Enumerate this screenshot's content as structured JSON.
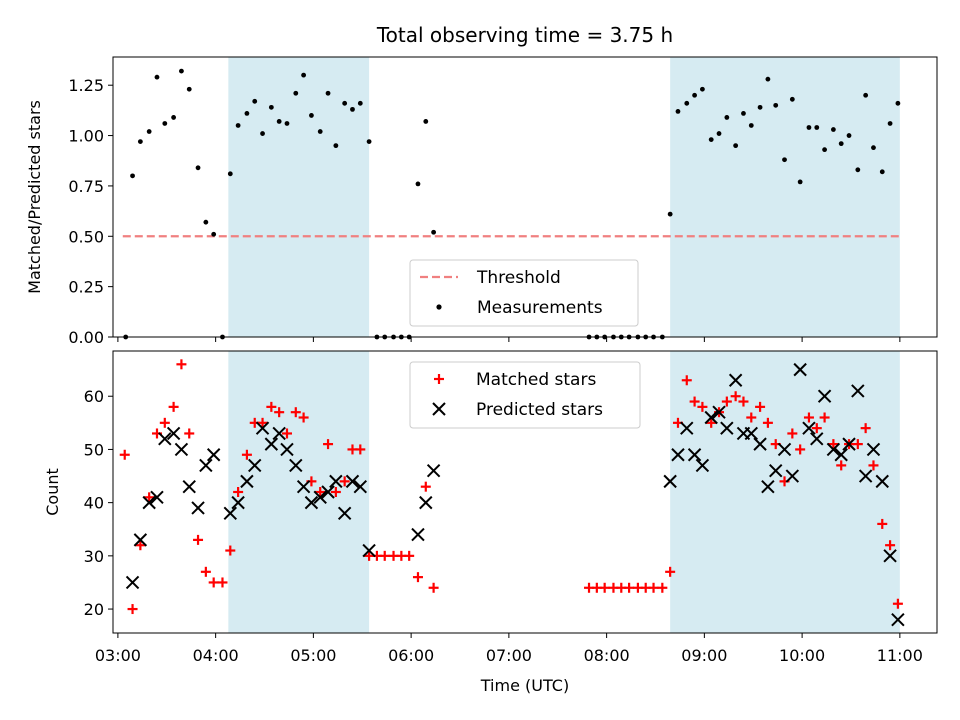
{
  "chart_data": [
    {
      "type": "scatter",
      "title": "Total observing time = 3.75 h",
      "xlabel": "",
      "ylabel": "Matched/Predicted stars",
      "x_unit": "time (UTC, decimal hours)",
      "xlim": [
        2.95,
        11.38
      ],
      "ylim": [
        0,
        1.39
      ],
      "yticks": [
        0,
        0.25,
        0.5,
        0.75,
        1.0,
        1.25
      ],
      "ytick_labels": [
        "0.00",
        "0.25",
        "0.50",
        "0.75",
        "1.00",
        "1.25"
      ],
      "shaded_intervals": [
        [
          4.13,
          5.57
        ],
        [
          8.65,
          11.0
        ]
      ],
      "shade_color": "#add8e6",
      "threshold": {
        "name": "Threshold",
        "y": 0.5,
        "x_range": [
          3.05,
          11.0
        ],
        "color": "#f08080"
      },
      "series": [
        {
          "name": "Measurements",
          "marker": "dot",
          "color": "#000000",
          "points": [
            [
              3.08,
              0.0
            ],
            [
              3.15,
              0.8
            ],
            [
              3.23,
              0.97
            ],
            [
              3.32,
              1.02
            ],
            [
              3.4,
              1.29
            ],
            [
              3.48,
              1.06
            ],
            [
              3.57,
              1.09
            ],
            [
              3.65,
              1.32
            ],
            [
              3.73,
              1.23
            ],
            [
              3.82,
              0.84
            ],
            [
              3.9,
              0.57
            ],
            [
              3.98,
              0.51
            ],
            [
              4.07,
              0.0
            ],
            [
              4.15,
              0.81
            ],
            [
              4.23,
              1.05
            ],
            [
              4.32,
              1.11
            ],
            [
              4.4,
              1.17
            ],
            [
              4.48,
              1.01
            ],
            [
              4.57,
              1.14
            ],
            [
              4.65,
              1.07
            ],
            [
              4.73,
              1.06
            ],
            [
              4.82,
              1.21
            ],
            [
              4.9,
              1.3
            ],
            [
              4.98,
              1.1
            ],
            [
              5.07,
              1.02
            ],
            [
              5.15,
              1.21
            ],
            [
              5.23,
              0.95
            ],
            [
              5.32,
              1.16
            ],
            [
              5.4,
              1.13
            ],
            [
              5.48,
              1.16
            ],
            [
              5.57,
              0.97
            ],
            [
              5.65,
              0.0
            ],
            [
              5.73,
              0.0
            ],
            [
              5.82,
              0.0
            ],
            [
              5.9,
              0.0
            ],
            [
              5.98,
              0.0
            ],
            [
              6.07,
              0.76
            ],
            [
              6.15,
              1.07
            ],
            [
              6.23,
              0.52
            ],
            [
              7.82,
              0.0
            ],
            [
              7.9,
              0.0
            ],
            [
              7.98,
              0.0
            ],
            [
              8.07,
              0.0
            ],
            [
              8.15,
              0.0
            ],
            [
              8.23,
              0.0
            ],
            [
              8.32,
              0.0
            ],
            [
              8.4,
              0.0
            ],
            [
              8.48,
              0.0
            ],
            [
              8.57,
              0.0
            ],
            [
              8.65,
              0.61
            ],
            [
              8.73,
              1.12
            ],
            [
              8.82,
              1.16
            ],
            [
              8.9,
              1.2
            ],
            [
              8.98,
              1.23
            ],
            [
              9.07,
              0.98
            ],
            [
              9.15,
              1.01
            ],
            [
              9.23,
              1.09
            ],
            [
              9.32,
              0.95
            ],
            [
              9.4,
              1.11
            ],
            [
              9.48,
              1.05
            ],
            [
              9.57,
              1.14
            ],
            [
              9.65,
              1.28
            ],
            [
              9.73,
              1.15
            ],
            [
              9.82,
              0.88
            ],
            [
              9.9,
              1.18
            ],
            [
              9.98,
              0.77
            ],
            [
              10.07,
              1.04
            ],
            [
              10.15,
              1.04
            ],
            [
              10.23,
              0.93
            ],
            [
              10.32,
              1.03
            ],
            [
              10.4,
              0.96
            ],
            [
              10.48,
              1.0
            ],
            [
              10.57,
              0.83
            ],
            [
              10.65,
              1.2
            ],
            [
              10.73,
              0.94
            ],
            [
              10.82,
              0.82
            ],
            [
              10.9,
              1.06
            ],
            [
              10.98,
              1.16
            ]
          ]
        }
      ],
      "legend": [
        "Threshold",
        "Measurements"
      ],
      "legend_location": "lower center",
      "grid": false
    },
    {
      "type": "scatter",
      "title": "",
      "xlabel": "Time (UTC)",
      "ylabel": "Count",
      "x_unit": "time (UTC, decimal hours)",
      "xlim": [
        2.95,
        11.38
      ],
      "ylim": [
        15.5,
        68.5
      ],
      "xticks": [
        3,
        4,
        5,
        6,
        7,
        8,
        9,
        10,
        11
      ],
      "xtick_labels": [
        "03:00",
        "04:00",
        "05:00",
        "06:00",
        "07:00",
        "08:00",
        "09:00",
        "10:00",
        "11:00"
      ],
      "yticks": [
        20,
        30,
        40,
        50,
        60
      ],
      "ytick_labels": [
        "20",
        "30",
        "40",
        "50",
        "60"
      ],
      "shaded_intervals": [
        [
          4.13,
          5.57
        ],
        [
          8.65,
          11.0
        ]
      ],
      "shade_color": "#add8e6",
      "series": [
        {
          "name": "Matched stars",
          "marker": "plus",
          "color": "#ff0000",
          "points": [
            [
              3.07,
              49
            ],
            [
              3.15,
              20
            ],
            [
              3.23,
              32
            ],
            [
              3.32,
              41
            ],
            [
              3.4,
              53
            ],
            [
              3.48,
              55
            ],
            [
              3.57,
              58
            ],
            [
              3.65,
              66
            ],
            [
              3.73,
              53
            ],
            [
              3.82,
              33
            ],
            [
              3.9,
              27
            ],
            [
              3.98,
              25
            ],
            [
              4.07,
              25
            ],
            [
              4.15,
              31
            ],
            [
              4.23,
              42
            ],
            [
              4.32,
              49
            ],
            [
              4.4,
              55
            ],
            [
              4.48,
              55
            ],
            [
              4.57,
              58
            ],
            [
              4.65,
              57
            ],
            [
              4.73,
              53
            ],
            [
              4.82,
              57
            ],
            [
              4.9,
              56
            ],
            [
              4.98,
              44
            ],
            [
              5.07,
              42
            ],
            [
              5.15,
              51
            ],
            [
              5.23,
              42
            ],
            [
              5.32,
              44
            ],
            [
              5.4,
              50
            ],
            [
              5.48,
              50
            ],
            [
              5.57,
              30
            ],
            [
              5.65,
              30
            ],
            [
              5.73,
              30
            ],
            [
              5.82,
              30
            ],
            [
              5.9,
              30
            ],
            [
              5.98,
              30
            ],
            [
              6.07,
              26
            ],
            [
              6.15,
              43
            ],
            [
              6.23,
              24
            ],
            [
              7.82,
              24
            ],
            [
              7.9,
              24
            ],
            [
              7.98,
              24
            ],
            [
              8.07,
              24
            ],
            [
              8.15,
              24
            ],
            [
              8.23,
              24
            ],
            [
              8.32,
              24
            ],
            [
              8.4,
              24
            ],
            [
              8.48,
              24
            ],
            [
              8.57,
              24
            ],
            [
              8.65,
              27
            ],
            [
              8.73,
              55
            ],
            [
              8.82,
              63
            ],
            [
              8.9,
              59
            ],
            [
              8.98,
              58
            ],
            [
              9.07,
              55
            ],
            [
              9.15,
              57
            ],
            [
              9.23,
              59
            ],
            [
              9.32,
              60
            ],
            [
              9.4,
              59
            ],
            [
              9.48,
              56
            ],
            [
              9.57,
              58
            ],
            [
              9.65,
              55
            ],
            [
              9.73,
              51
            ],
            [
              9.82,
              44
            ],
            [
              9.9,
              53
            ],
            [
              9.98,
              50
            ],
            [
              10.07,
              56
            ],
            [
              10.15,
              54
            ],
            [
              10.23,
              56
            ],
            [
              10.32,
              51
            ],
            [
              10.4,
              47
            ],
            [
              10.48,
              51
            ],
            [
              10.57,
              51
            ],
            [
              10.65,
              54
            ],
            [
              10.73,
              47
            ],
            [
              10.82,
              36
            ],
            [
              10.9,
              32
            ],
            [
              10.98,
              21
            ]
          ]
        },
        {
          "name": "Predicted stars",
          "marker": "x",
          "color": "#000000",
          "points": [
            [
              3.15,
              25
            ],
            [
              3.23,
              33
            ],
            [
              3.32,
              40
            ],
            [
              3.4,
              41
            ],
            [
              3.48,
              52
            ],
            [
              3.57,
              53
            ],
            [
              3.65,
              50
            ],
            [
              3.73,
              43
            ],
            [
              3.82,
              39
            ],
            [
              3.9,
              47
            ],
            [
              3.98,
              49
            ],
            [
              4.15,
              38
            ],
            [
              4.23,
              40
            ],
            [
              4.32,
              44
            ],
            [
              4.4,
              47
            ],
            [
              4.48,
              54
            ],
            [
              4.57,
              51
            ],
            [
              4.65,
              53
            ],
            [
              4.73,
              50
            ],
            [
              4.82,
              47
            ],
            [
              4.9,
              43
            ],
            [
              4.98,
              40
            ],
            [
              5.07,
              41
            ],
            [
              5.15,
              42
            ],
            [
              5.23,
              44
            ],
            [
              5.32,
              38
            ],
            [
              5.4,
              44
            ],
            [
              5.48,
              43
            ],
            [
              5.57,
              31
            ],
            [
              6.07,
              34
            ],
            [
              6.15,
              40
            ],
            [
              6.23,
              46
            ],
            [
              8.65,
              44
            ],
            [
              8.73,
              49
            ],
            [
              8.82,
              54
            ],
            [
              8.9,
              49
            ],
            [
              8.98,
              47
            ],
            [
              9.07,
              56
            ],
            [
              9.15,
              57
            ],
            [
              9.23,
              54
            ],
            [
              9.32,
              63
            ],
            [
              9.4,
              53
            ],
            [
              9.48,
              53
            ],
            [
              9.57,
              51
            ],
            [
              9.65,
              43
            ],
            [
              9.73,
              46
            ],
            [
              9.82,
              50
            ],
            [
              9.9,
              45
            ],
            [
              9.98,
              65
            ],
            [
              10.07,
              54
            ],
            [
              10.15,
              52
            ],
            [
              10.23,
              60
            ],
            [
              10.32,
              50
            ],
            [
              10.4,
              49
            ],
            [
              10.48,
              51
            ],
            [
              10.57,
              61
            ],
            [
              10.65,
              45
            ],
            [
              10.73,
              50
            ],
            [
              10.82,
              44
            ],
            [
              10.9,
              30
            ],
            [
              10.98,
              18
            ]
          ]
        }
      ],
      "legend": [
        "Matched stars",
        "Predicted stars"
      ],
      "legend_location": "upper center",
      "grid": false
    }
  ]
}
